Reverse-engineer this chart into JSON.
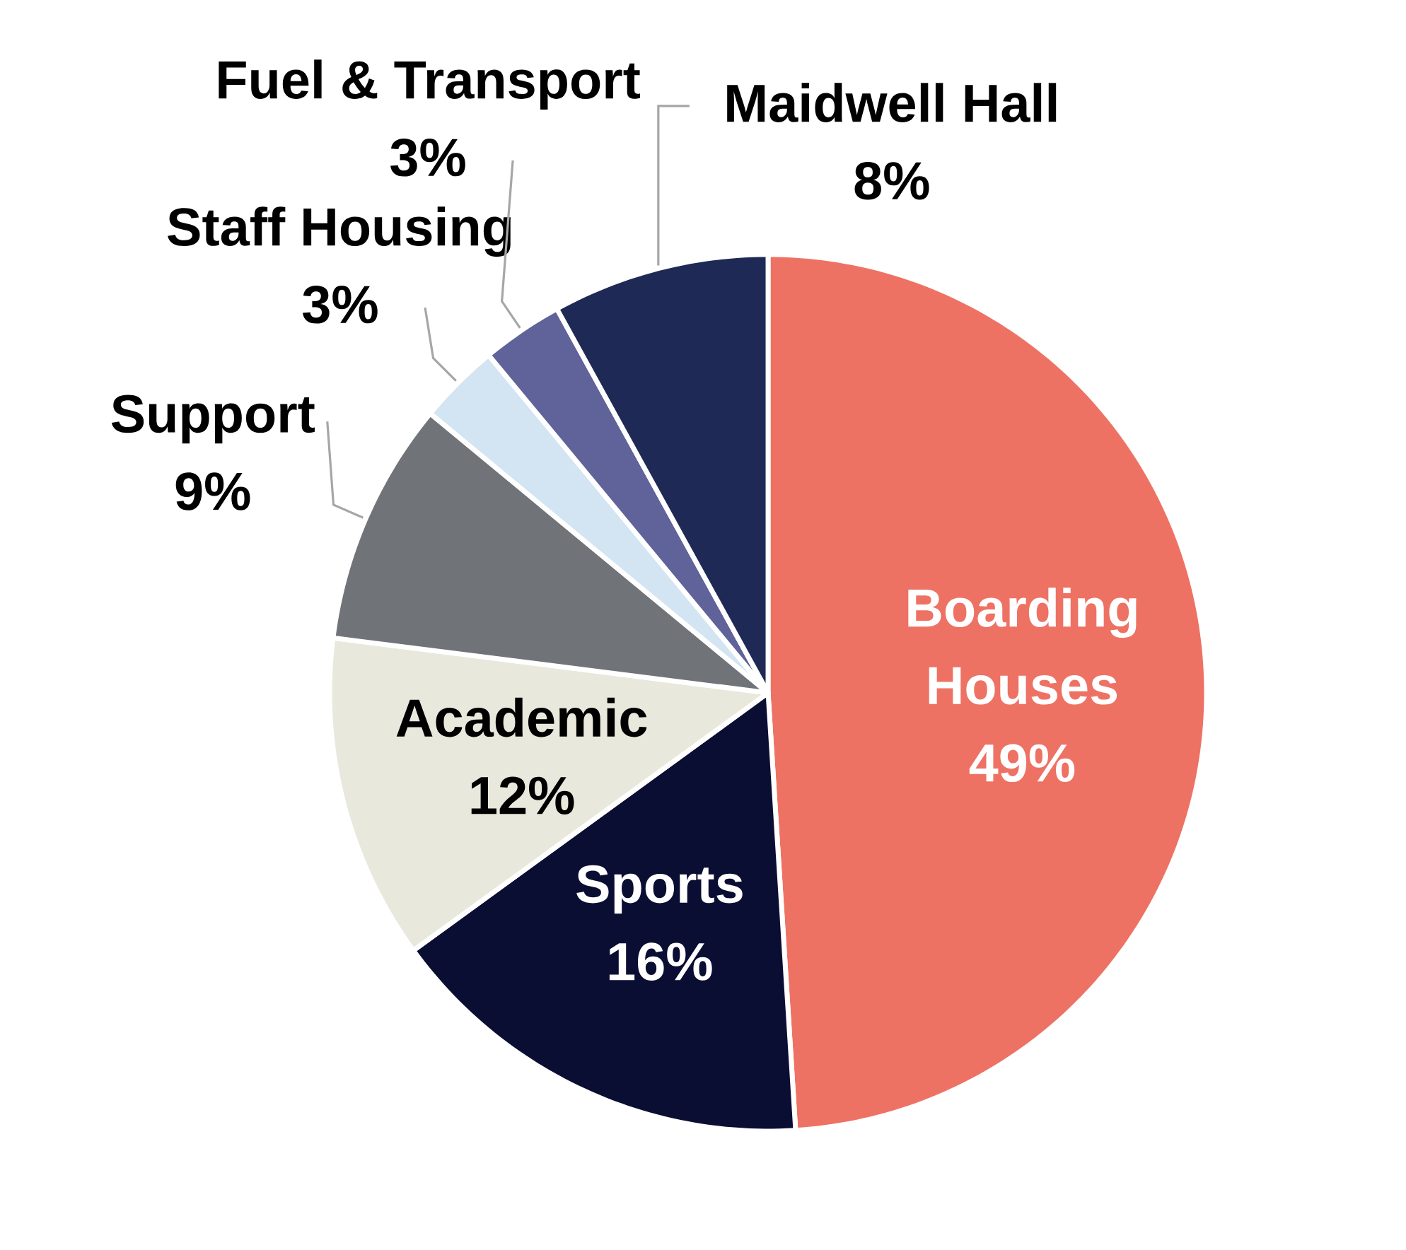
{
  "chart_data": {
    "type": "pie",
    "categories": [
      "Boarding Houses",
      "Sports",
      "Academic",
      "Support",
      "Staff Housing",
      "Fuel & Transport",
      "Maidwell Hall"
    ],
    "values": [
      49,
      16,
      12,
      9,
      3,
      3,
      8
    ],
    "value_labels": [
      "49%",
      "16%",
      "12%",
      "9%",
      "3%",
      "3%",
      "8%"
    ],
    "colors": [
      "#ee7264",
      "#0b0e33",
      "#e9e8dc",
      "#707478",
      "#d3e4f2",
      "#5f6399",
      "#1e2a55"
    ]
  }
}
